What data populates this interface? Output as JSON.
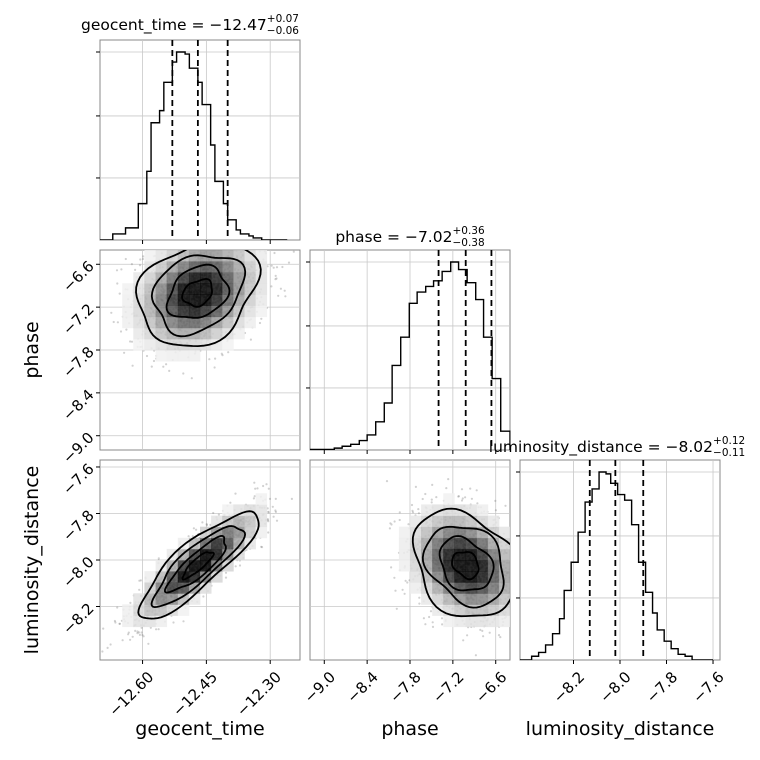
{
  "chart_data": {
    "type": "corner",
    "parameters": [
      "geocent_time",
      "phase",
      "luminosity_distance"
    ],
    "axis_labels": {
      "geocent_time": "geocent_time",
      "phase": "phase",
      "luminosity_distance": "luminosity_distance"
    },
    "titles": [
      {
        "param": "geocent_time",
        "text": "geocent_time = −12.47",
        "sup": "+0.07",
        "sub": "−0.06"
      },
      {
        "param": "phase",
        "text": "phase = −7.02",
        "sup": "+0.36",
        "sub": "−0.38"
      },
      {
        "param": "luminosity_distance",
        "text": "luminosity_distance = −8.02",
        "sup": "+0.12",
        "sub": "−0.11"
      }
    ],
    "ranges": {
      "geocent_time": [
        -12.7,
        -12.23
      ],
      "phase": [
        -9.2,
        -6.4
      ],
      "luminosity_distance": [
        -8.43,
        -7.57
      ]
    },
    "ticks": {
      "geocent_time": {
        "values": [
          -12.6,
          -12.45,
          -12.3
        ],
        "labels": [
          "−12.60",
          "−12.45",
          "−12.30"
        ]
      },
      "phase": {
        "values": [
          -9.0,
          -8.4,
          -7.8,
          -7.2,
          -6.6
        ],
        "labels": [
          "−9.0",
          "−8.4",
          "−7.8",
          "−7.2",
          "−6.6"
        ]
      },
      "luminosity_distance": {
        "values": [
          -8.2,
          -8.0,
          -7.8,
          -7.6
        ],
        "labels": [
          "−8.2",
          "−8.0",
          "−7.8",
          "−7.6"
        ]
      }
    },
    "quantiles": {
      "geocent_time": [
        -12.53,
        -12.47,
        -12.4
      ],
      "phase": [
        -7.4,
        -7.02,
        -6.66
      ],
      "luminosity_distance": [
        -8.13,
        -8.02,
        -7.9
      ]
    },
    "histograms": {
      "geocent_time": {
        "bin_edges": [
          -12.7,
          -12.67,
          -12.64,
          -12.61,
          -12.59,
          -12.58,
          -12.56,
          -12.55,
          -12.53,
          -12.52,
          -12.5,
          -12.49,
          -12.47,
          -12.46,
          -12.44,
          -12.43,
          -12.41,
          -12.4,
          -12.38,
          -12.37,
          -12.35,
          -12.34,
          -12.32,
          -12.29,
          -12.26
        ],
        "counts": [
          0,
          3,
          6,
          18,
          34,
          58,
          64,
          78,
          88,
          93,
          92,
          85,
          78,
          67,
          47,
          29,
          18,
          10,
          5,
          3,
          2,
          1,
          0,
          0
        ]
      },
      "phase": {
        "bin_edges": [
          -9.2,
          -8.86,
          -8.75,
          -8.63,
          -8.51,
          -8.4,
          -8.28,
          -8.16,
          -8.05,
          -7.93,
          -7.81,
          -7.7,
          -7.58,
          -7.47,
          -7.35,
          -7.23,
          -7.12,
          -7.0,
          -6.88,
          -6.77,
          -6.65,
          -6.53,
          -6.4
        ],
        "counts": [
          0.3,
          1,
          2,
          3,
          5,
          8,
          15,
          25,
          45,
          60,
          78,
          84,
          87,
          90,
          95,
          100,
          96,
          89,
          80,
          60,
          38,
          10
        ]
      },
      "luminosity_distance": {
        "bin_edges": [
          -8.43,
          -8.38,
          -8.35,
          -8.32,
          -8.29,
          -8.26,
          -8.24,
          -8.21,
          -8.18,
          -8.15,
          -8.12,
          -8.09,
          -8.06,
          -8.04,
          -8.01,
          -7.98,
          -7.95,
          -7.92,
          -7.89,
          -7.86,
          -7.84,
          -7.81,
          -7.78,
          -7.75,
          -7.72,
          -7.69,
          -7.6
        ],
        "counts": [
          0,
          2,
          4,
          8,
          14,
          22,
          37,
          52,
          68,
          84,
          91,
          100,
          99,
          94,
          88,
          85,
          72,
          52,
          36,
          25,
          16,
          10,
          6,
          3,
          2,
          0
        ]
      }
    },
    "pairs": [
      {
        "x": "geocent_time",
        "y": "phase",
        "mean": [
          -12.47,
          -7.0
        ],
        "sd": [
          0.07,
          0.37
        ],
        "corr": 0.25
      },
      {
        "x": "geocent_time",
        "y": "luminosity_distance",
        "mean": [
          -12.47,
          -8.02
        ],
        "sd": [
          0.07,
          0.115
        ],
        "corr": 0.85
      },
      {
        "x": "phase",
        "y": "luminosity_distance",
        "mean": [
          -7.02,
          -8.02
        ],
        "sd": [
          0.37,
          0.115
        ],
        "corr": -0.25
      }
    ],
    "contour_levels": [
      "0.5-sigma",
      "1-sigma",
      "1.5-sigma",
      "2-sigma"
    ],
    "grid": true,
    "colors": {
      "line": "#000000",
      "points": "#7a7a7a",
      "grid": "#c8c8c8",
      "frame": "#888888"
    }
  }
}
